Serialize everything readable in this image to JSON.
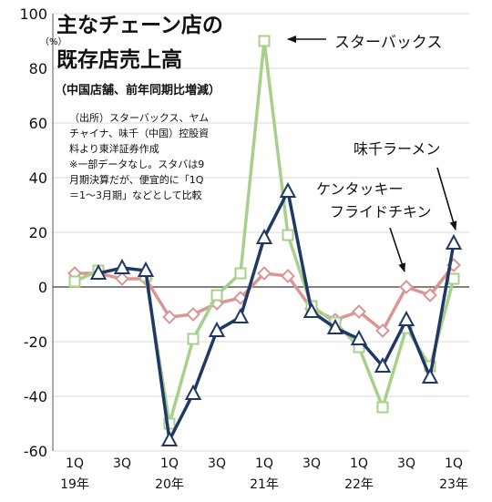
{
  "title_lines": [
    "主なチェーン店の",
    "既存店売上高"
  ],
  "subtitle": "（中国店舗、前年同期比増減）",
  "source_lines": [
    "（出所）スターバックス、ヤム",
    "チャイナ、味千（中国）控股資",
    "料より東洋証券作成",
    "※一部データなし。スタバは9",
    "月期決算だが、便宜的に「1Q",
    "＝1～3月期」などとして比較"
  ],
  "annotations": {
    "starbucks": "スターバックス",
    "ajisen": "味千ラーメン",
    "kfc_line1": "ケンタッキー",
    "kfc_line2": "フライドチキン"
  },
  "colors": {
    "starbucks": "#a8d08d",
    "kfc": "#d99694",
    "ajisen": "#1f3864",
    "grid": "#d9d9d9",
    "zero_line": "#595959"
  },
  "chart_data": {
    "type": "line",
    "y_unit": "（%）",
    "ylim": [
      -60,
      100
    ],
    "yticks": [
      100,
      80,
      60,
      40,
      20,
      0,
      -20,
      -40,
      -60
    ],
    "grid": true,
    "legend": "none (direct labels)",
    "x_labels": [
      {
        "i": 0,
        "q": "1Q",
        "year": "19年"
      },
      {
        "i": 2,
        "q": "3Q",
        "year": ""
      },
      {
        "i": 4,
        "q": "1Q",
        "year": "20年"
      },
      {
        "i": 6,
        "q": "3Q",
        "year": ""
      },
      {
        "i": 8,
        "q": "1Q",
        "year": "21年"
      },
      {
        "i": 10,
        "q": "3Q",
        "year": ""
      },
      {
        "i": 12,
        "q": "1Q",
        "year": "22年"
      },
      {
        "i": 14,
        "q": "3Q",
        "year": ""
      },
      {
        "i": 16,
        "q": "1Q",
        "year": "23年"
      }
    ],
    "series": [
      {
        "name": "スターバックス",
        "key": "starbucks",
        "marker": "square",
        "values": [
          2,
          6,
          null,
          4,
          -50,
          -19,
          -3,
          5,
          90,
          19,
          -7,
          -13,
          -22,
          -44,
          -15,
          -29,
          3
        ]
      },
      {
        "name": "ケンタッキーフライドチキン",
        "key": "kfc",
        "marker": "diamond",
        "values": [
          5,
          5,
          3,
          3,
          -11,
          -10,
          -6,
          -4,
          5,
          4,
          -8,
          -12,
          -9,
          -16,
          0,
          -3,
          8
        ]
      },
      {
        "name": "味千ラーメン",
        "key": "ajisen",
        "marker": "triangle",
        "values": [
          null,
          5,
          7,
          6,
          -56,
          -39,
          -16,
          -11,
          18,
          35,
          -9,
          -15,
          -19,
          -29,
          -12,
          -33,
          16
        ]
      }
    ]
  }
}
